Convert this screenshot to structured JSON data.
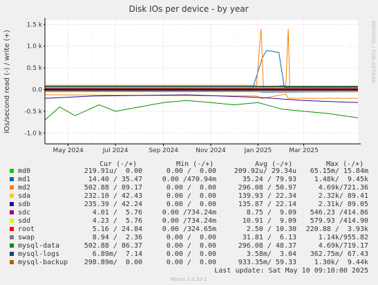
{
  "chart_data": {
    "type": "line",
    "title": "Disk IOs per device - by year",
    "ylabel": "IOs/second read (-) / write (+)",
    "watermark": "RRDTOOL / TOBI OETIKER",
    "ylim": [
      -1.25,
      1.6
    ],
    "y_ticks": [
      {
        "v": 1.5,
        "label": "1.5 k"
      },
      {
        "v": 1.0,
        "label": "1.0 k"
      },
      {
        "v": 0.5,
        "label": "0.5 k"
      },
      {
        "v": 0.0,
        "label": "0.0"
      },
      {
        "v": -0.5,
        "label": "-0.5 k"
      },
      {
        "v": -1.0,
        "label": "-1.0 k"
      }
    ],
    "x_range": [
      "2024-04-01",
      "2025-05-10"
    ],
    "x_ticks": [
      {
        "date": "2024-05-01",
        "label": "May 2024"
      },
      {
        "date": "2024-07-01",
        "label": "Jul 2024"
      },
      {
        "date": "2024-09-01",
        "label": "Sep 2024"
      },
      {
        "date": "2024-11-01",
        "label": "Nov 2024"
      },
      {
        "date": "2025-01-01",
        "label": "Jan 2025"
      },
      {
        "date": "2025-03-01",
        "label": "Mar 2025"
      }
    ],
    "grid": true,
    "series_points": {
      "md0": [
        [
          "2024-04-01",
          0.03,
          -0.05
        ],
        [
          "2024-10-01",
          0.03,
          -0.05
        ],
        [
          "2025-05-10",
          0.03,
          -0.05
        ]
      ],
      "md1": [
        [
          "2024-04-01",
          0.02,
          -0.04
        ],
        [
          "2024-12-25",
          0.02,
          -0.04
        ],
        [
          "2025-01-07",
          0.75,
          -0.06
        ],
        [
          "2025-01-12",
          0.9,
          -0.06
        ],
        [
          "2025-01-20",
          0.88,
          -0.06
        ],
        [
          "2025-01-28",
          0.85,
          -0.06
        ],
        [
          "2025-02-04",
          0.05,
          -0.06
        ],
        [
          "2025-05-10",
          0.05,
          -0.05
        ]
      ],
      "md2": [
        [
          "2024-04-01",
          0.1,
          -0.12
        ],
        [
          "2024-12-30",
          0.1,
          -0.15
        ],
        [
          "2025-01-05",
          1.4,
          -0.2
        ],
        [
          "2025-01-08",
          0.05,
          -0.2
        ],
        [
          "2025-02-06",
          0.1,
          -0.1
        ],
        [
          "2025-02-09",
          1.4,
          -0.2
        ],
        [
          "2025-02-11",
          0.05,
          -0.2
        ],
        [
          "2025-05-10",
          0.05,
          -0.2
        ]
      ],
      "sda": [
        [
          "2024-04-01",
          0.06,
          -0.05
        ],
        [
          "2025-05-10",
          0.06,
          -0.05
        ]
      ],
      "sdb": [
        [
          "2024-04-01",
          0.06,
          -0.2
        ],
        [
          "2024-06-01",
          0.06,
          -0.15
        ],
        [
          "2024-10-01",
          0.06,
          -0.12
        ],
        [
          "2025-01-01",
          0.06,
          -0.18
        ],
        [
          "2025-03-01",
          0.06,
          -0.25
        ],
        [
          "2025-05-10",
          0.06,
          -0.3
        ]
      ],
      "sdc": [
        [
          "2024-04-01",
          0.01,
          -0.01
        ],
        [
          "2025-05-10",
          0.01,
          -0.01
        ]
      ],
      "sdd": [
        [
          "2024-04-01",
          0.01,
          -0.01
        ],
        [
          "2025-05-10",
          0.01,
          -0.01
        ]
      ],
      "root": [
        [
          "2024-04-01",
          0.03,
          -0.03
        ],
        [
          "2025-05-10",
          0.03,
          -0.03
        ]
      ],
      "swap": [
        [
          "2024-04-01",
          0.01,
          -0.02
        ],
        [
          "2025-05-10",
          0.01,
          -0.02
        ]
      ],
      "mysql-data": [
        [
          "2024-04-01",
          0.08,
          -0.7
        ],
        [
          "2024-04-20",
          0.08,
          -0.4
        ],
        [
          "2024-05-10",
          0.08,
          -0.6
        ],
        [
          "2024-06-10",
          0.08,
          -0.35
        ],
        [
          "2024-07-01",
          0.08,
          -0.5
        ],
        [
          "2024-08-01",
          0.08,
          -0.4
        ],
        [
          "2024-09-01",
          0.08,
          -0.3
        ],
        [
          "2024-10-01",
          0.08,
          -0.25
        ],
        [
          "2024-11-01",
          0.08,
          -0.3
        ],
        [
          "2024-12-01",
          0.08,
          -0.35
        ],
        [
          "2025-01-01",
          0.08,
          -0.3
        ],
        [
          "2025-02-01",
          0.08,
          -0.45
        ],
        [
          "2025-03-01",
          0.08,
          -0.5
        ],
        [
          "2025-04-01",
          0.08,
          -0.55
        ],
        [
          "2025-05-10",
          0.08,
          -0.65
        ]
      ],
      "mysql-logs": [
        [
          "2024-04-01",
          0.01,
          -0.01
        ],
        [
          "2025-05-10",
          0.01,
          -0.01
        ]
      ],
      "mysql-backup": [
        [
          "2024-04-01",
          0.0,
          0.0
        ],
        [
          "2025-05-10",
          0.0,
          0.0
        ]
      ]
    },
    "series": [
      {
        "name": "md0",
        "color": "#00cc00",
        "cur": "219.91u/  0.00",
        "min": "0.00 /  0.00",
        "avg": "209.92u/ 29.34u",
        "max": "65.15m/ 15.84m"
      },
      {
        "name": "md1",
        "color": "#0066b3",
        "cur": "14.40 / 35.47",
        "min": "0.00 /470.94m",
        "avg": "35.24 / 79.93",
        "max": "1.48k/  9.45k"
      },
      {
        "name": "md2",
        "color": "#ff8000",
        "cur": "502.88 / 89.17",
        "min": "0.00 /  0.00",
        "avg": "296.08 / 50.97",
        "max": "4.69k/721.36"
      },
      {
        "name": "sda",
        "color": "#ffcc00",
        "cur": "232.10 / 42.43",
        "min": "0.00 /  0.00",
        "avg": "139.93 / 22.34",
        "max": "2.32k/ 89.41"
      },
      {
        "name": "sdb",
        "color": "#330099",
        "cur": "235.39 / 42.24",
        "min": "0.00 /  0.00",
        "avg": "135.87 / 22.14",
        "max": "2.31k/ 89.05"
      },
      {
        "name": "sdc",
        "color": "#990099",
        "cur": "4.01 /  5.76",
        "min": "0.00 /734.24m",
        "avg": "8.75 /  9.09",
        "max": "546.23 /414.86"
      },
      {
        "name": "sdd",
        "color": "#ccff00",
        "cur": "4.23 /  5.76",
        "min": "0.00 /734.24m",
        "avg": "10.91 /  9.09",
        "max": "579.93 /414.90"
      },
      {
        "name": "root",
        "color": "#ff0000",
        "cur": "5.16 / 24.84",
        "min": "0.00 /324.65m",
        "avg": "2.50 / 10.30",
        "max": "220.88 /  3.93k"
      },
      {
        "name": "swap",
        "color": "#808080",
        "cur": "8.94 /  2.36",
        "min": "0.00 /  0.00",
        "avg": "31.81 /  6.13",
        "max": "1.14k/955.82"
      },
      {
        "name": "mysql-data",
        "color": "#008f00",
        "cur": "502.88 / 86.37",
        "min": "0.00 /  0.00",
        "avg": "296.08 / 48.37",
        "max": "4.69k/719.17"
      },
      {
        "name": "mysql-logs",
        "color": "#00487d",
        "cur": "6.89m/  7.14",
        "min": "0.00 /  0.00",
        "avg": "3.58m/  3.04",
        "max": "362.75m/ 67.43"
      },
      {
        "name": "mysql-backup",
        "color": "#b35a00",
        "cur": "298.89m/  0.00",
        "min": "0.00 /  0.00",
        "avg": "933.35m/ 59.33",
        "max": "1.30k/  9.44k"
      }
    ]
  },
  "legend_headers": {
    "cur": "Cur (-/+)",
    "min": "Min (-/+)",
    "avg": "Avg (-/+)",
    "max": "Max (-/+)"
  },
  "last_update": "Last update: Sat May 10 09:10:00 2025",
  "footer": "Munin 2.0.33-1",
  "colors": {
    "background": "#f0f0f0",
    "plot_background": "#ffffff",
    "grid": "#e0c0c0",
    "axis": "#000000"
  }
}
